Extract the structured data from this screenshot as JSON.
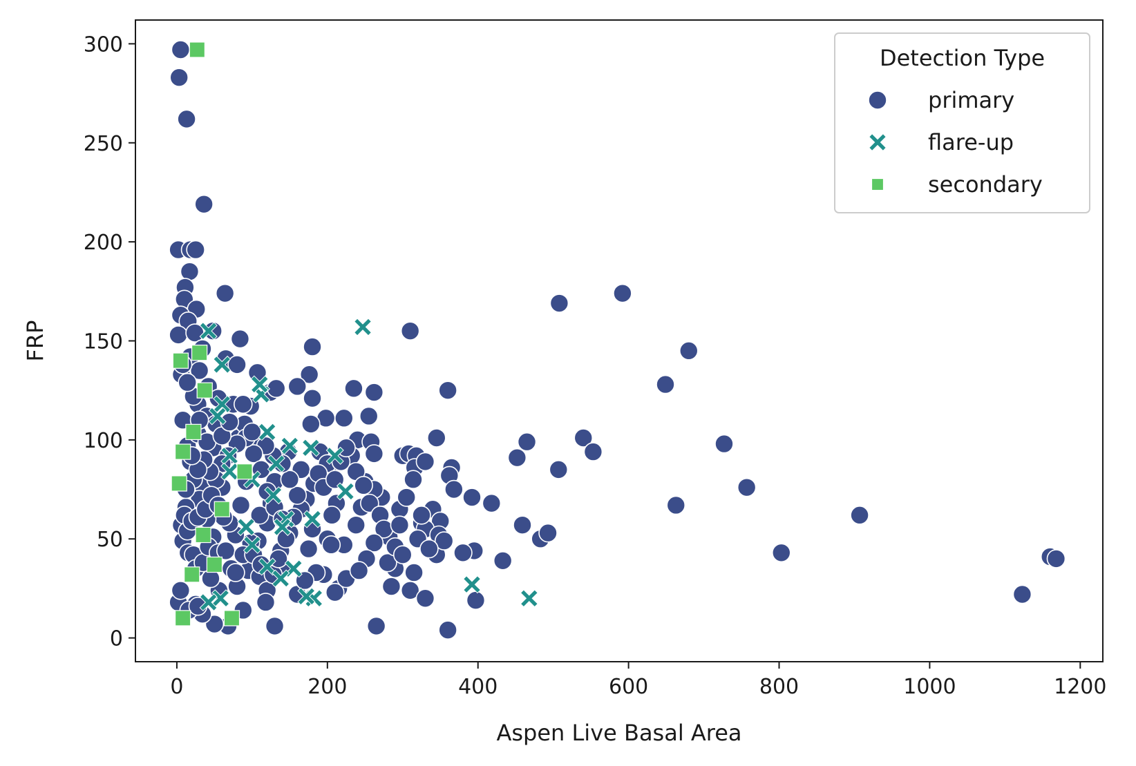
{
  "chart_data": {
    "type": "scatter",
    "xlabel": "Aspen Live Basal Area",
    "ylabel": "FRP",
    "xlim": [
      -55,
      1230
    ],
    "ylim": [
      -12,
      312
    ],
    "xticks": [
      0,
      200,
      400,
      600,
      800,
      1000,
      1200
    ],
    "yticks": [
      0,
      50,
      100,
      150,
      200,
      250,
      300
    ],
    "grid": false,
    "legend": {
      "title": "Detection Type",
      "position": "top-right",
      "entries": [
        {
          "label": "primary",
          "marker": "circle",
          "color": "#3b4d8a"
        },
        {
          "label": "flare-up",
          "marker": "x",
          "color": "#21908c"
        },
        {
          "label": "secondary",
          "marker": "square",
          "color": "#5cc863"
        }
      ]
    },
    "series": [
      {
        "name": "primary",
        "marker": "circle",
        "color": "#3b4d8a",
        "points": [
          [
            5,
            297
          ],
          [
            3,
            283
          ],
          [
            13,
            262
          ],
          [
            36,
            219
          ],
          [
            2,
            196
          ],
          [
            18,
            196
          ],
          [
            25,
            196
          ],
          [
            17,
            185
          ],
          [
            11,
            177
          ],
          [
            64,
            174
          ],
          [
            10,
            171
          ],
          [
            26,
            166
          ],
          [
            5,
            163
          ],
          [
            15,
            160
          ],
          [
            2,
            153
          ],
          [
            24,
            154
          ],
          [
            48,
            155
          ],
          [
            84,
            151
          ],
          [
            34,
            146
          ],
          [
            18,
            142
          ],
          [
            6,
            133
          ],
          [
            30,
            135
          ],
          [
            65,
            141
          ],
          [
            80,
            138
          ],
          [
            42,
            127
          ],
          [
            107,
            134
          ],
          [
            180,
            147
          ],
          [
            176,
            133
          ],
          [
            180,
            121
          ],
          [
            160,
            127
          ],
          [
            124,
            124
          ],
          [
            132,
            126
          ],
          [
            55,
            121
          ],
          [
            75,
            118
          ],
          [
            98,
            117
          ],
          [
            28,
            118
          ],
          [
            8,
            110
          ],
          [
            40,
            112
          ],
          [
            52,
            108
          ],
          [
            198,
            111
          ],
          [
            178,
            108
          ],
          [
            222,
            111
          ],
          [
            82,
            101
          ],
          [
            90,
            108
          ],
          [
            14,
            97
          ],
          [
            28,
            103
          ],
          [
            48,
            96
          ],
          [
            110,
            98
          ],
          [
            148,
            94
          ],
          [
            235,
            126
          ],
          [
            262,
            124
          ],
          [
            255,
            112
          ],
          [
            240,
            100
          ],
          [
            258,
            99
          ],
          [
            262,
            93
          ],
          [
            232,
            92
          ],
          [
            208,
            88
          ],
          [
            300,
            92
          ],
          [
            308,
            93
          ],
          [
            318,
            92
          ],
          [
            316,
            86
          ],
          [
            314,
            80
          ],
          [
            330,
            89
          ],
          [
            345,
            101
          ],
          [
            360,
            125
          ],
          [
            310,
            155
          ],
          [
            508,
            169
          ],
          [
            592,
            174
          ],
          [
            649,
            128
          ],
          [
            680,
            145
          ],
          [
            540,
            101
          ],
          [
            553,
            94
          ],
          [
            465,
            99
          ],
          [
            452,
            91
          ],
          [
            507,
            85
          ],
          [
            727,
            98
          ],
          [
            757,
            76
          ],
          [
            663,
            67
          ],
          [
            907,
            62
          ],
          [
            803,
            43
          ],
          [
            1123,
            22
          ],
          [
            1160,
            41
          ],
          [
            1168,
            40
          ],
          [
            483,
            50
          ],
          [
            493,
            53
          ],
          [
            459,
            57
          ],
          [
            433,
            39
          ],
          [
            397,
            19
          ],
          [
            395,
            44
          ],
          [
            392,
            71
          ],
          [
            418,
            68
          ],
          [
            365,
            86
          ],
          [
            362,
            82
          ],
          [
            368,
            75
          ],
          [
            380,
            43
          ],
          [
            340,
            65
          ],
          [
            325,
            58
          ],
          [
            350,
            59
          ],
          [
            345,
            42
          ],
          [
            330,
            55
          ],
          [
            315,
            33
          ],
          [
            310,
            24
          ],
          [
            330,
            20
          ],
          [
            285,
            26
          ],
          [
            290,
            35
          ],
          [
            280,
            38
          ],
          [
            282,
            51
          ],
          [
            296,
            65
          ],
          [
            272,
            71
          ],
          [
            250,
            79
          ],
          [
            262,
            75
          ],
          [
            245,
            66
          ],
          [
            238,
            57
          ],
          [
            222,
            47
          ],
          [
            212,
            68
          ],
          [
            206,
            62
          ],
          [
            200,
            50
          ],
          [
            205,
            47
          ],
          [
            195,
            32
          ],
          [
            185,
            33
          ],
          [
            215,
            25
          ],
          [
            210,
            23
          ],
          [
            225,
            30
          ],
          [
            265,
            6
          ],
          [
            360,
            4
          ],
          [
            130,
            6
          ],
          [
            68,
            6
          ],
          [
            50,
            7
          ],
          [
            34,
            12
          ],
          [
            25,
            17
          ],
          [
            2,
            18
          ],
          [
            5,
            24
          ],
          [
            16,
            14
          ],
          [
            28,
            16
          ],
          [
            56,
            24
          ],
          [
            45,
            30
          ],
          [
            80,
            26
          ],
          [
            88,
            14
          ],
          [
            95,
            34
          ],
          [
            110,
            31
          ],
          [
            120,
            24
          ],
          [
            118,
            18
          ],
          [
            140,
            35
          ],
          [
            160,
            22
          ],
          [
            170,
            29
          ],
          [
            175,
            45
          ],
          [
            180,
            55
          ],
          [
            172,
            70
          ],
          [
            182,
            78
          ],
          [
            165,
            65
          ],
          [
            150,
            53
          ],
          [
            138,
            44
          ],
          [
            130,
            79
          ],
          [
            125,
            68
          ],
          [
            120,
            58
          ],
          [
            110,
            62
          ],
          [
            108,
            49
          ],
          [
            98,
            48
          ],
          [
            92,
            79
          ],
          [
            85,
            67
          ],
          [
            78,
            52
          ],
          [
            70,
            58
          ],
          [
            60,
            76
          ],
          [
            62,
            61
          ],
          [
            48,
            51
          ],
          [
            40,
            60
          ],
          [
            35,
            77
          ],
          [
            30,
            70
          ],
          [
            22,
            80
          ],
          [
            18,
            89
          ],
          [
            12,
            66
          ],
          [
            8,
            49
          ],
          [
            15,
            43
          ],
          [
            22,
            42
          ],
          [
            25,
            35
          ],
          [
            35,
            38
          ],
          [
            42,
            46
          ],
          [
            55,
            43
          ],
          [
            65,
            44
          ],
          [
            72,
            35
          ],
          [
            78,
            33
          ],
          [
            88,
            42
          ],
          [
            102,
            42
          ],
          [
            112,
            37
          ],
          [
            128,
            32
          ],
          [
            135,
            40
          ],
          [
            145,
            50
          ],
          [
            155,
            61
          ],
          [
            160,
            72
          ],
          [
            165,
            85
          ],
          [
            150,
            80
          ],
          [
            140,
            88
          ],
          [
            128,
            92
          ],
          [
            118,
            97
          ],
          [
            102,
            93
          ],
          [
            92,
            101
          ],
          [
            80,
            98
          ],
          [
            68,
            92
          ],
          [
            60,
            88
          ],
          [
            52,
            80
          ],
          [
            44,
            84
          ],
          [
            36,
            90
          ],
          [
            28,
            85
          ],
          [
            20,
            92
          ],
          [
            12,
            75
          ],
          [
            6,
            57
          ],
          [
            10,
            62
          ],
          [
            14,
            54
          ],
          [
            20,
            59
          ],
          [
            28,
            61
          ],
          [
            38,
            65
          ],
          [
            46,
            72
          ],
          [
            55,
            67
          ],
          [
            40,
            99
          ],
          [
            30,
            110
          ],
          [
            22,
            122
          ],
          [
            14,
            129
          ],
          [
            8,
            138
          ],
          [
            60,
            102
          ],
          [
            70,
            109
          ],
          [
            88,
            118
          ],
          [
            100,
            104
          ],
          [
            112,
            85
          ],
          [
            120,
            74
          ],
          [
            130,
            66
          ],
          [
            140,
            60
          ],
          [
            190,
            94
          ],
          [
            200,
            88
          ],
          [
            188,
            83
          ],
          [
            195,
            76
          ],
          [
            210,
            80
          ],
          [
            218,
            89
          ],
          [
            225,
            96
          ],
          [
            238,
            84
          ],
          [
            248,
            77
          ],
          [
            256,
            68
          ],
          [
            270,
            62
          ],
          [
            275,
            55
          ],
          [
            290,
            46
          ],
          [
            300,
            42
          ],
          [
            320,
            50
          ],
          [
            348,
            52
          ],
          [
            355,
            49
          ],
          [
            335,
            45
          ],
          [
            325,
            62
          ],
          [
            305,
            71
          ],
          [
            296,
            57
          ],
          [
            262,
            48
          ],
          [
            252,
            40
          ],
          [
            242,
            34
          ]
        ]
      },
      {
        "name": "flare-up",
        "marker": "x",
        "color": "#21908c",
        "points": [
          [
            247,
            157
          ],
          [
            392,
            27
          ],
          [
            468,
            20
          ],
          [
            178,
            96
          ],
          [
            224,
            74
          ],
          [
            145,
            60
          ],
          [
            140,
            56
          ],
          [
            155,
            35
          ],
          [
            182,
            20
          ],
          [
            172,
            21
          ],
          [
            92,
            56
          ],
          [
            100,
            47
          ],
          [
            120,
            36
          ],
          [
            138,
            30
          ],
          [
            70,
            92
          ],
          [
            60,
            118
          ],
          [
            54,
            112
          ],
          [
            60,
            138
          ],
          [
            42,
            155
          ],
          [
            120,
            104
          ],
          [
            112,
            123
          ],
          [
            110,
            128
          ],
          [
            150,
            97
          ],
          [
            132,
            88
          ],
          [
            210,
            92
          ],
          [
            180,
            60
          ],
          [
            58,
            20
          ],
          [
            42,
            18
          ],
          [
            70,
            84
          ],
          [
            100,
            80
          ],
          [
            128,
            72
          ]
        ]
      },
      {
        "name": "secondary",
        "marker": "square",
        "color": "#5cc863",
        "points": [
          [
            27,
            297
          ],
          [
            37,
            125
          ],
          [
            8,
            94
          ],
          [
            90,
            84
          ],
          [
            8,
            10
          ],
          [
            73,
            10
          ],
          [
            20,
            32
          ],
          [
            50,
            37
          ],
          [
            5,
            140
          ],
          [
            3,
            78
          ],
          [
            35,
            52
          ],
          [
            30,
            144
          ],
          [
            60,
            65
          ],
          [
            22,
            104
          ]
        ]
      }
    ]
  }
}
